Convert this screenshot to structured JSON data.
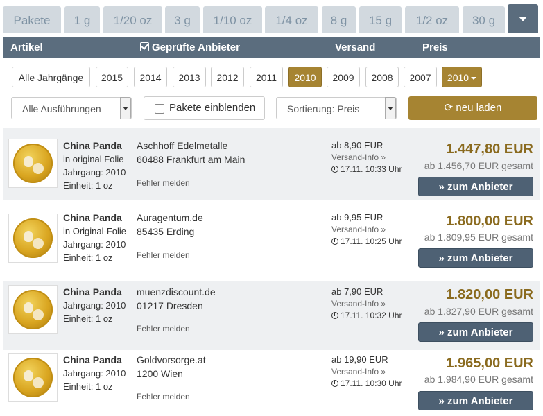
{
  "tabs": [
    {
      "label": "Pakete"
    },
    {
      "label": "1 g"
    },
    {
      "label": "1/20 oz"
    },
    {
      "label": "3 g"
    },
    {
      "label": "1/10 oz"
    },
    {
      "label": "1/4 oz"
    },
    {
      "label": "8 g"
    },
    {
      "label": "15 g"
    },
    {
      "label": "1/2 oz"
    },
    {
      "label": "30 g"
    }
  ],
  "header": {
    "artikel": "Artikel",
    "anbieter": "Geprüfte Anbieter",
    "versand": "Versand",
    "preis": "Preis"
  },
  "years": {
    "all": "Alle Jahrgänge",
    "list": [
      "2015",
      "2014",
      "2013",
      "2012",
      "2011",
      "2010",
      "2009",
      "2008",
      "2007"
    ],
    "selected": "2010",
    "dropdown": "2010"
  },
  "filters": {
    "ausfuehrungen": "Alle Ausführungen",
    "pakete": "Pakete einblenden",
    "sortierung": "Sortierung: Preis",
    "reload": "neu laden"
  },
  "rows": [
    {
      "name": "China Panda",
      "detail1": "in original Folie",
      "detail2": "Jahrgang: 2010",
      "detail3": "Einheit: 1 oz",
      "vendor": "Aschhoff Edelmetalle",
      "city": "60488 Frankfurt am Main",
      "error": "Fehler melden",
      "shipping": "ab 8,90 EUR",
      "info": "Versand-Info »",
      "time": "17.11. 10:33 Uhr",
      "price": "1.447,80 EUR",
      "total": "ab 1.456,70 EUR gesamt",
      "button": "» zum Anbieter"
    },
    {
      "name": "China Panda",
      "detail1": "in Original-Folie",
      "detail2": "Jahrgang: 2010",
      "detail3": "Einheit: 1 oz",
      "vendor": "Auragentum.de",
      "city": "85435 Erding",
      "error": "Fehler melden",
      "shipping": "ab 9,95 EUR",
      "info": "Versand-Info »",
      "time": "17.11. 10:25 Uhr",
      "price": "1.800,00 EUR",
      "total": "ab 1.809,95 EUR gesamt",
      "button": "» zum Anbieter"
    },
    {
      "name": "China Panda",
      "detail1": "Jahrgang: 2010",
      "detail2": "Einheit: 1 oz",
      "detail3": "",
      "vendor": "muenzdiscount.de",
      "city": "01217 Dresden",
      "error": "Fehler melden",
      "shipping": "ab 7,90 EUR",
      "info": "Versand-Info »",
      "time": "17.11. 10:32 Uhr",
      "price": "1.820,00 EUR",
      "total": "ab 1.827,90 EUR gesamt",
      "button": "» zum Anbieter"
    },
    {
      "name": "China Panda",
      "detail1": "Jahrgang: 2010",
      "detail2": "Einheit: 1 oz",
      "detail3": "",
      "vendor": "Goldvorsorge.at",
      "city": "1200 Wien",
      "error": "Fehler melden",
      "shipping": "ab 19,90 EUR",
      "info": "Versand-Info »",
      "time": "17.11. 10:30 Uhr",
      "price": "1.965,00 EUR",
      "total": "ab 1.984,90 EUR gesamt",
      "button": "» zum Anbieter"
    }
  ]
}
